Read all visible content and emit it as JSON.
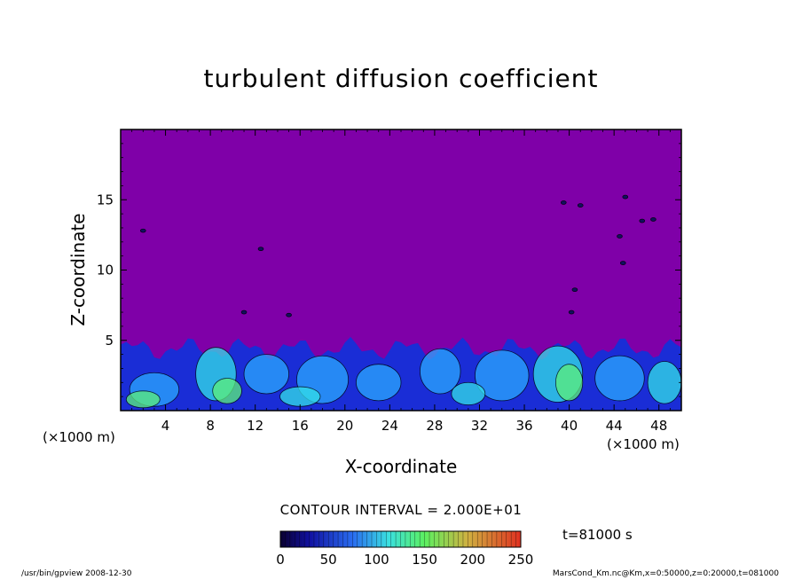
{
  "chart_data": {
    "type": "heatmap",
    "title": "turbulent diffusion coefficient",
    "xlabel": "X-coordinate",
    "ylabel": "Z-coordinate",
    "x_unit": "(×1000 m)",
    "z_unit": "(×1000 m)",
    "xlim": [
      0,
      50
    ],
    "ylim": [
      0,
      20
    ],
    "x_ticks": [
      4,
      8,
      12,
      16,
      20,
      24,
      28,
      32,
      36,
      40,
      44,
      48
    ],
    "y_ticks": [
      5,
      10,
      15
    ],
    "contour_interval": "CONTOUR INTERVAL = 2.000E+01",
    "colorbar": {
      "min": 0,
      "max": 250,
      "ticks": [
        0,
        50,
        100,
        150,
        200,
        250
      ]
    },
    "time_label": "t=81000 s",
    "background_value_color": "#7f00a8",
    "turbulent_layer_top_km": 5,
    "colors": {
      "background": "#7f00a8",
      "low": "#1a2dd6",
      "mid": "#2aa8ff",
      "high": "#33e0e8",
      "peak": "#5cf07a"
    }
  },
  "footer": {
    "left": "/usr/bin/gpview   2008-12-30",
    "right": "MarsCond_Km.nc@Km,x=0:50000,z=0:20000,t=081000"
  }
}
